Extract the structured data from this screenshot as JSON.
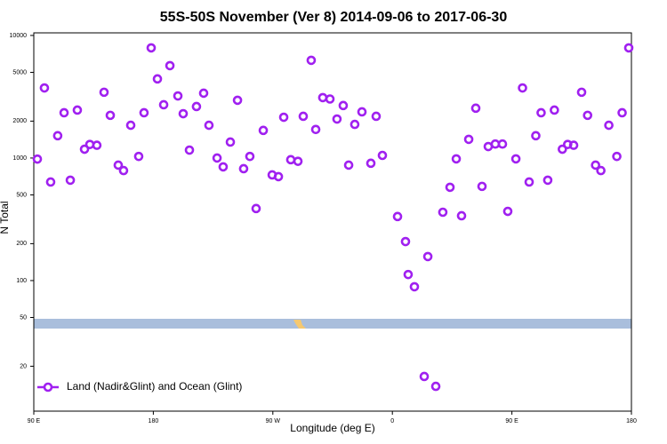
{
  "chart_data": {
    "type": "scatter",
    "title": "55S-50S November (Ver 8)   2014-09-06 to 2017-06-30",
    "x_label": "Longitude (deg E)",
    "y_label": "N Total",
    "y_log": true,
    "legend_position": "lower left",
    "xlim": [
      90,
      540
    ],
    "ylim": [
      8.6,
      10500
    ],
    "xticks": [
      {
        "value": 90,
        "label": "90 E"
      },
      180,
      {
        "value": 270,
        "label": "90 W"
      },
      {
        "value": 360,
        "label": "0"
      },
      {
        "value": 450,
        "label": "90 E"
      },
      {
        "value": 540,
        "label": "180"
      }
    ],
    "yticks": [
      10000,
      5000,
      2000,
      1000,
      500,
      200,
      100,
      50,
      20
    ],
    "series": [
      {
        "name": "Land (Nadir&Glint) and Ocean (Glint)",
        "color": "#a020f0",
        "x": [
          92.7,
          98,
          102.7,
          108,
          112.8,
          117.5,
          122.8,
          128.2,
          132.2,
          137.5,
          142.9,
          147.6,
          153.6,
          157.6,
          163,
          169,
          173,
          178.4,
          183.1,
          187.8,
          192.5,
          198.5,
          202.5,
          207.2,
          212.5,
          217.9,
          221.9,
          228,
          232.6,
          238,
          243.4,
          248,
          252.7,
          257.4,
          262.8,
          269.5,
          274.2,
          278.2,
          283.5,
          288.9,
          292.9,
          298.9,
          302.3,
          307.6,
          313,
          318.3,
          323,
          327.1,
          331.7,
          337.1,
          343.8,
          347.8,
          352.5,
          363.9,
          369.9,
          371.9,
          376.6,
          384,
          386.7,
          392.7,
          398,
          403.4,
          408.1,
          412.1,
          417.5,
          422.8,
          427.5,
          432.2,
          437.5,
          442.9,
          446.9,
          453,
          458,
          463,
          468,
          472,
          477,
          482,
          488,
          492,
          496.5,
          502.5,
          507,
          513,
          517,
          523,
          529,
          533,
          538
        ],
        "values": [
          980,
          3730,
          637,
          1520,
          2340,
          659,
          2460,
          1180,
          1290,
          1270,
          3440,
          2230,
          875,
          790,
          1850,
          1030,
          2340,
          7920,
          4420,
          2720,
          5670,
          3210,
          2300,
          1160,
          2630,
          3380,
          1850,
          1000,
          847,
          1350,
          2960,
          818,
          1030,
          387,
          1680,
          728,
          705,
          2150,
          969,
          940,
          2190,
          6270,
          1710,
          3110,
          3030,
          2080,
          2680,
          875,
          1880,
          2380,
          906,
          2190,
          1050,
          333,
          208,
          112,
          89,
          16.5,
          157,
          13.7,
          361,
          577,
          984,
          338,
          1420,
          2550,
          587,
          1240,
          1300,
          1300,
          367,
          984,
          3730,
          637,
          1520,
          2340,
          659,
          2460,
          1180,
          1290,
          1270,
          3440,
          2230,
          875,
          790,
          1850,
          1030,
          2340,
          7920
        ]
      }
    ]
  }
}
